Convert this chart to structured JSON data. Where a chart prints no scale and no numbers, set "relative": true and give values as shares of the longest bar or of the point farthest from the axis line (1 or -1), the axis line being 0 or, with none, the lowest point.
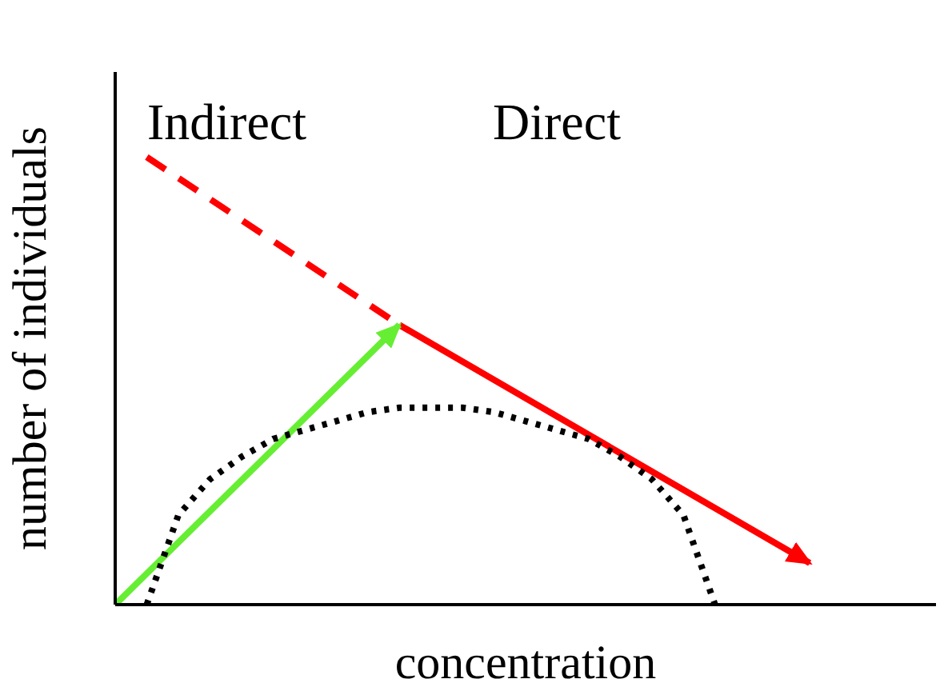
{
  "chart_data": {
    "type": "line",
    "relative": true,
    "xlabel": "concentration",
    "ylabel": "number of individuals",
    "annotations": [
      "Indirect",
      "Direct"
    ],
    "marker": "none",
    "categories": [
      null,
      null,
      null,
      null,
      null,
      null,
      null,
      null,
      null,
      null,
      null,
      null,
      null,
      null,
      null,
      null,
      null,
      null,
      null,
      null,
      null,
      null,
      null,
      null,
      null,
      null,
      null
    ],
    "series": [
      {
        "color": "#ff0000",
        "line_style": "dashed",
        "values": [
          null,
          1.0,
          null,
          null,
          null,
          null,
          null,
          null,
          null,
          0.625,
          null,
          null,
          null,
          null,
          null,
          null,
          null,
          null,
          null,
          null,
          null,
          null,
          null,
          null,
          null,
          null,
          null
        ]
      },
      {
        "color": "#ff0000",
        "line_style": "solid",
        "values": [
          null,
          null,
          null,
          null,
          null,
          null,
          null,
          null,
          null,
          0.625,
          null,
          null,
          null,
          null,
          null,
          null,
          null,
          null,
          null,
          null,
          null,
          null,
          0.093,
          null,
          null,
          null,
          null
        ]
      },
      {
        "color": "#66ee33",
        "line_style": "solid",
        "values": [
          0.0,
          null,
          null,
          null,
          null,
          null,
          null,
          null,
          null,
          0.625,
          null,
          null,
          null,
          null,
          null,
          null,
          null,
          null,
          null,
          null,
          null,
          null,
          null,
          null,
          null,
          null,
          null
        ]
      },
      {
        "color": "#000000",
        "line_style": "dotted",
        "values": [
          null,
          0.0,
          0.2,
          0.28,
          0.33,
          0.37,
          0.39,
          0.41,
          0.43,
          0.44,
          0.44,
          0.44,
          0.43,
          0.41,
          0.39,
          0.37,
          0.33,
          0.28,
          0.2,
          0.0,
          null,
          null,
          null,
          null,
          null,
          null,
          null
        ]
      }
    ]
  }
}
